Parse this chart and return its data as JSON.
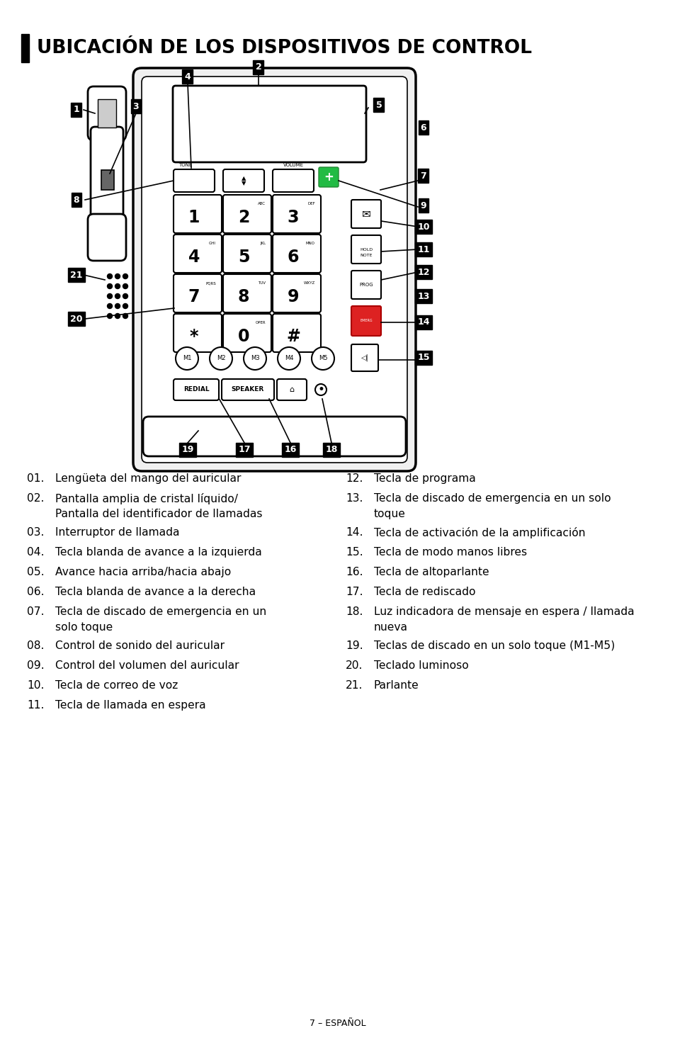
{
  "title": "UBICACIÓN DE LOS DISPOSITIVOS DE CONTROL",
  "page_footer": "7 – ESPAÑOL",
  "bg_color": "#ffffff",
  "label_bg": "#000000",
  "label_fg": "#ffffff",
  "items_left": [
    [
      "01.",
      "Lengüeta del mango del auricular"
    ],
    [
      "02.",
      "Pantalla amplia de cristal líquido/\nPantalla del identificador de llamadas"
    ],
    [
      "03.",
      "Interruptor de llamada"
    ],
    [
      "04.",
      "Tecla blanda de avance a la izquierda"
    ],
    [
      "05.",
      "Avance hacia arriba/hacia abajo"
    ],
    [
      "06.",
      "Tecla blanda de avance a la derecha"
    ],
    [
      "07.",
      "Tecla de discado de emergencia en un\nsolo toque"
    ],
    [
      "08.",
      "Control de sonido del auricular"
    ],
    [
      "09.",
      "Control del volumen del auricular"
    ],
    [
      "10.",
      "Tecla de correo de voz"
    ],
    [
      "11.",
      "Tecla de llamada en espera"
    ]
  ],
  "items_right": [
    [
      "12.",
      "Tecla de programa"
    ],
    [
      "13.",
      "Tecla de discado de emergencia en un solo\ntoque"
    ],
    [
      "14.",
      "Tecla de activación de la amplificación"
    ],
    [
      "15.",
      "Tecla de modo manos libres"
    ],
    [
      "16.",
      "Tecla de altoparlante"
    ],
    [
      "17.",
      "Tecla de rediscado"
    ],
    [
      "18.",
      "Luz indicadora de mensaje en espera / llamada\nnueva"
    ],
    [
      "19.",
      "Teclas de discado en un solo toque (M1-M5)"
    ],
    [
      "20.",
      "Teclado luminoso"
    ],
    [
      "21.",
      "Parlante"
    ]
  ]
}
